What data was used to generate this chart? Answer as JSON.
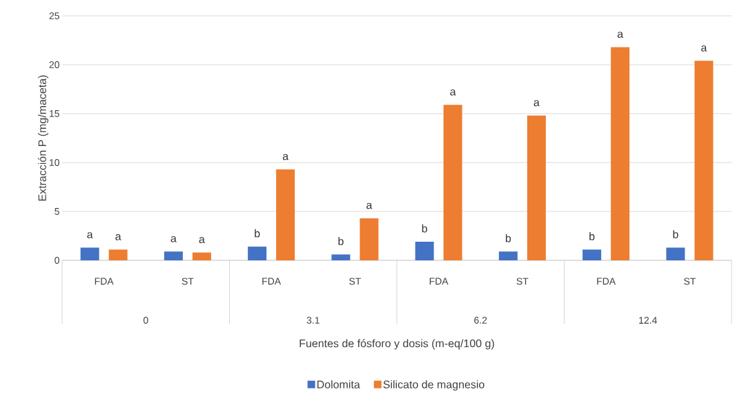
{
  "chart_data": {
    "type": "bar",
    "xlabel": "Fuentes de fósforo y dosis (m-eq/100 g)",
    "ylabel": "Extracción P (mg/maceta)",
    "categories": [
      "FDA",
      "ST",
      "FDA",
      "ST",
      "FDA",
      "ST",
      "FDA",
      "ST"
    ],
    "annotations": [
      "0",
      "3.1",
      "6.2",
      "12.4"
    ],
    "series": [
      {
        "name": "Dolomita",
        "color": "#4472c4",
        "values": [
          1.3,
          0.9,
          1.4,
          0.6,
          1.9,
          0.9,
          1.1,
          1.3
        ],
        "value_labels": [
          "a",
          "a",
          "b",
          "b",
          "b",
          "b",
          "b",
          "b"
        ]
      },
      {
        "name": "Silicato de magnesio",
        "color": "#ed7d31",
        "values": [
          1.1,
          0.8,
          9.3,
          4.3,
          15.9,
          14.8,
          21.8,
          20.4
        ],
        "value_labels": [
          "a",
          "a",
          "a",
          "a",
          "a",
          "a",
          "a",
          "a"
        ]
      }
    ],
    "ylim": [
      0,
      25
    ],
    "yticks": [
      0,
      5,
      10,
      15,
      20,
      25
    ],
    "grid": "y",
    "legend": "bottom"
  }
}
